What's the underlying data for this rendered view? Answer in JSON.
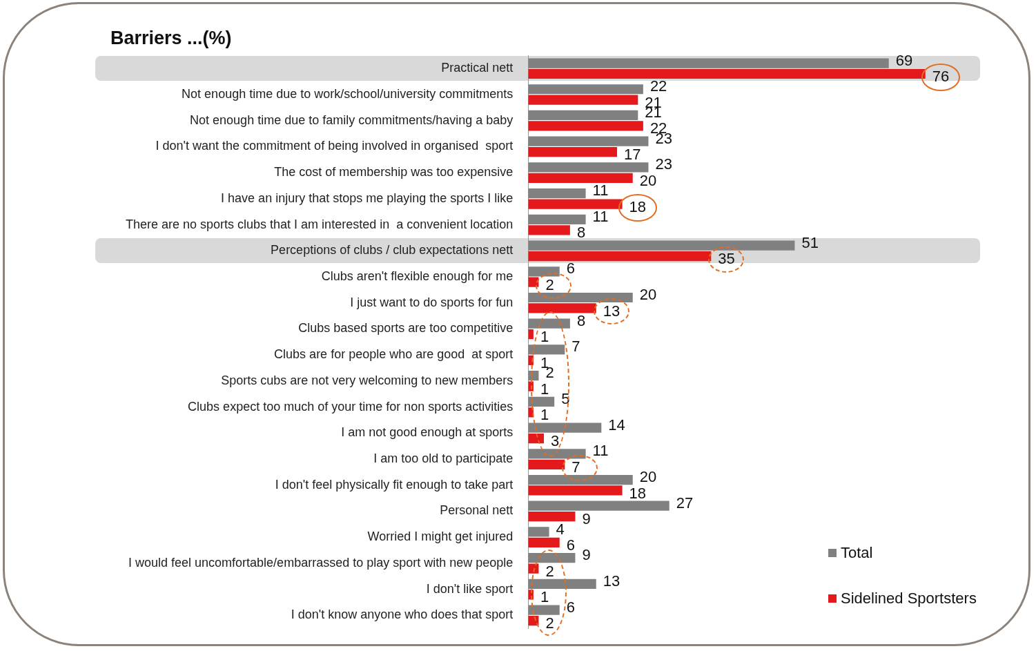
{
  "chart_data": {
    "type": "bar",
    "orientation": "horizontal",
    "title": "Barriers ...(%)",
    "categories": [
      "Practical nett",
      "Not enough time due to work/school/university commitments",
      "Not enough time due to family commitments/having a baby",
      "I don't want the commitment of being involved in organised  sport",
      "The cost of membership was too expensive",
      "I have an injury that stops me playing the sports I like",
      "There are no sports clubs that I am interested in  a convenient location",
      "Perceptions of clubs / club expectations nett",
      "Clubs aren't flexible enough for me",
      "I just want to do sports for fun",
      "Clubs based sports are too competitive",
      "Clubs are for people who are good  at sport",
      "Sports cubs are not very welcoming to new members",
      "Clubs expect too much of your time for non sports activities",
      "I am not good enough at sports",
      "I am too old to participate",
      "I don't feel physically fit enough to take part",
      "Personal nett",
      "Worried I might get injured",
      "I would feel uncomfortable/embarrassed to play sport with new people",
      "I don't like sport",
      "I don't know anyone who does that sport"
    ],
    "series": [
      {
        "name": "Total",
        "color": "#808080",
        "values": [
          69,
          22,
          21,
          23,
          23,
          11,
          11,
          51,
          6,
          20,
          8,
          7,
          2,
          5,
          14,
          11,
          20,
          27,
          4,
          9,
          13,
          6
        ]
      },
      {
        "name": "Sidelined Sportsters",
        "color": "#e3191c",
        "values": [
          76,
          21,
          22,
          17,
          20,
          18,
          8,
          35,
          2,
          13,
          1,
          1,
          1,
          1,
          3,
          7,
          18,
          9,
          6,
          2,
          1,
          2
        ]
      }
    ],
    "data_labels": true,
    "grid": false,
    "legend": "bottom right",
    "tick_labels": "y"
  }
}
